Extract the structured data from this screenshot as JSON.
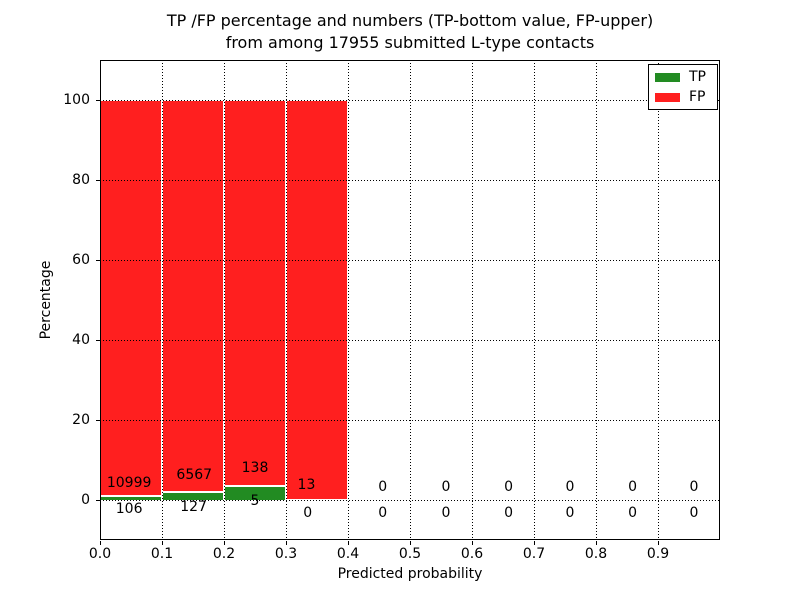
{
  "figure": {
    "title_line1": "TP /FP percentage and numbers (TP-bottom value, FP-upper)",
    "title_line2": "from among 17955 submitted L-type contacts",
    "xlabel": "Predicted probability",
    "ylabel": "Percentage"
  },
  "chart_data": {
    "type": "bar",
    "stacked": true,
    "title": "TP /FP percentage and numbers (TP-bottom value, FP-upper) from among 17955 submitted L-type contacts",
    "total_submitted_contacts": 17955,
    "contact_type": "L-type",
    "xlabel": "Predicted probability",
    "ylabel": "Percentage",
    "xlim": [
      0.0,
      1.0
    ],
    "ylim": [
      -10,
      110
    ],
    "grid": {
      "style": "dotted",
      "color": "#000000"
    },
    "bin_edges": [
      0.0,
      0.1,
      0.2,
      0.3,
      0.4,
      0.5,
      0.6,
      0.7,
      0.8,
      0.9,
      1.0
    ],
    "categories": [
      "0.0-0.1",
      "0.1-0.2",
      "0.2-0.3",
      "0.3-0.4",
      "0.4-0.5",
      "0.5-0.6",
      "0.6-0.7",
      "0.7-0.8",
      "0.8-0.9",
      "0.9-1.0"
    ],
    "series": [
      {
        "name": "TP",
        "color": "#228b22",
        "counts": [
          106,
          127,
          5,
          0,
          0,
          0,
          0,
          0,
          0,
          0
        ],
        "percentages": [
          0.95,
          1.9,
          3.5,
          0,
          0,
          0,
          0,
          0,
          0,
          0
        ]
      },
      {
        "name": "FP",
        "color": "#ff1f1f",
        "counts": [
          10999,
          6567,
          138,
          13,
          0,
          0,
          0,
          0,
          0,
          0
        ],
        "percentages": [
          99.05,
          98.1,
          96.5,
          100,
          0,
          0,
          0,
          0,
          0,
          0
        ]
      }
    ],
    "xticks": {
      "values": [
        0.0,
        0.1,
        0.2,
        0.3,
        0.4,
        0.5,
        0.6,
        0.7,
        0.8,
        0.9
      ],
      "labels": [
        "0.0",
        "0.1",
        "0.2",
        "0.3",
        "0.4",
        "0.5",
        "0.6",
        "0.7",
        "0.8",
        "0.9"
      ]
    },
    "yticks": {
      "values": [
        0,
        20,
        40,
        60,
        80,
        100
      ],
      "labels": [
        "0",
        "20",
        "40",
        "60",
        "80",
        "100"
      ]
    },
    "legend": {
      "position": "upper right",
      "entries": [
        {
          "label": "TP",
          "color": "#228b22"
        },
        {
          "label": "FP",
          "color": "#ff1f1f"
        }
      ]
    },
    "annotations": {
      "fp_counts": [
        {
          "text": "10999",
          "x": 0.047,
          "y": 4.3
        },
        {
          "text": "6567",
          "x": 0.152,
          "y": 6.3
        },
        {
          "text": "138",
          "x": 0.25,
          "y": 7.9
        },
        {
          "text": "13",
          "x": 0.333,
          "y": 3.8
        },
        {
          "text": "0",
          "x": 0.456,
          "y": 3.3
        },
        {
          "text": "0",
          "x": 0.558,
          "y": 3.3
        },
        {
          "text": "0",
          "x": 0.659,
          "y": 3.3
        },
        {
          "text": "0",
          "x": 0.758,
          "y": 3.3
        },
        {
          "text": "0",
          "x": 0.859,
          "y": 3.3
        },
        {
          "text": "0",
          "x": 0.958,
          "y": 3.3
        }
      ],
      "tp_counts": [
        {
          "text": "106",
          "x": 0.047,
          "y": -2.3
        },
        {
          "text": "127",
          "x": 0.151,
          "y": -1.7
        },
        {
          "text": "5",
          "x": 0.25,
          "y": -0.3
        },
        {
          "text": "0",
          "x": 0.335,
          "y": -3.2
        },
        {
          "text": "0",
          "x": 0.456,
          "y": -3.3
        },
        {
          "text": "0",
          "x": 0.558,
          "y": -3.3
        },
        {
          "text": "0",
          "x": 0.659,
          "y": -3.3
        },
        {
          "text": "0",
          "x": 0.758,
          "y": -3.3
        },
        {
          "text": "0",
          "x": 0.859,
          "y": -3.3
        },
        {
          "text": "0",
          "x": 0.958,
          "y": -3.3
        }
      ]
    }
  }
}
